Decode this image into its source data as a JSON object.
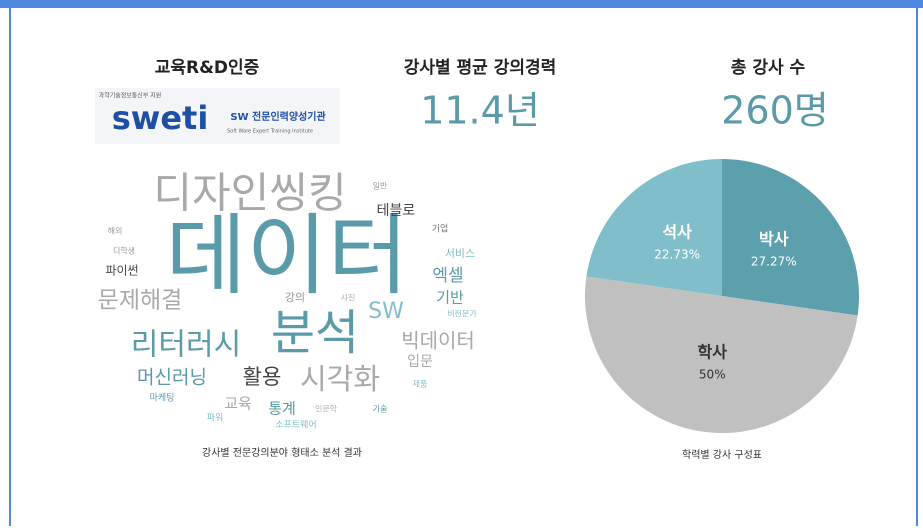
{
  "stats": [
    {
      "label": "교육R&D인증"
    },
    {
      "label": "강사별 평균 강의경력",
      "value": "11.4년"
    },
    {
      "label": "총 강사 수",
      "value": "260명"
    }
  ],
  "logo": {
    "ministry": "과학기술정보통신부 지원",
    "brand": "sweti",
    "name": "SW 전문인력양성기관",
    "english": "Soft Ware Expert Training Institute"
  },
  "word_cloud": {
    "words": [
      "디자인씽킹",
      "데이터",
      "분석",
      "리터러시",
      "문제해결",
      "파이썬",
      "디학생",
      "해외",
      "일반",
      "테블로",
      "기업",
      "서비스",
      "엑셀",
      "기반",
      "비전문가",
      "강의",
      "사진",
      "SW",
      "빅데이터",
      "입문",
      "제품",
      "머신러닝",
      "활용",
      "시각화",
      "마케팅",
      "교육",
      "파워",
      "통계",
      "인문학",
      "기술",
      "소프트웨어"
    ],
    "caption": "강사별 전문강의분야 형태소 분석 결과"
  },
  "pie": {
    "type": "pie",
    "title": "학력별 강사 구성표",
    "categories": [
      "박사",
      "학사",
      "석사"
    ],
    "values": [
      27.27,
      50,
      22.73
    ],
    "value_labels": [
      "27.27%",
      "50%",
      "22.73%"
    ],
    "colors": [
      "#5c9fad",
      "#c0c0c0",
      "#80bfca"
    ],
    "label_colors": [
      "#ffffff",
      "#333333",
      "#ffffff"
    ]
  }
}
